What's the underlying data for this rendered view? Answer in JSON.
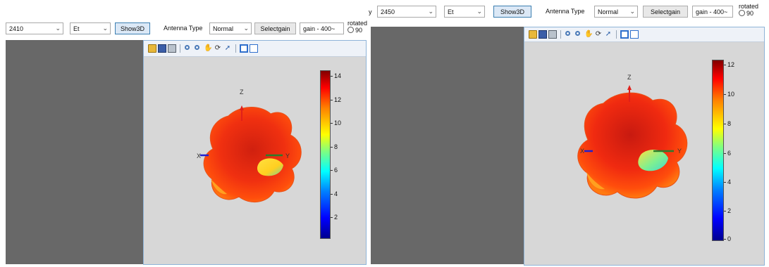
{
  "left": {
    "frequency": "2410",
    "field": "Et",
    "show3d": "Show3D",
    "antenna_type_label": "Antenna Type",
    "antenna_type": "Normal",
    "selectgain": "Selectgain",
    "gain_field": "gain - 400~",
    "rotated_label": "rotated",
    "rotated_option": "90",
    "axis_z": "Z",
    "axis_x": "X",
    "axis_y": "Y",
    "colorbar_ticks": [
      "14",
      "12",
      "10",
      "8",
      "6",
      "4",
      "2"
    ]
  },
  "right": {
    "y_fragment": "y",
    "frequency": "2450",
    "field": "Et",
    "show3d": "Show3D",
    "antenna_type_label": "Antenna Type",
    "antenna_type": "Normal",
    "selectgain": "Selectgain",
    "gain_field": "gain - 400~",
    "rotated_label": "rotated",
    "rotated_option": "90",
    "axis_z": "Z",
    "axis_x": "X",
    "axis_y": "Y",
    "colorbar_ticks": [
      "12",
      "10",
      "8",
      "6",
      "4",
      "2",
      "0"
    ]
  },
  "icons": [
    "folder-open-icon",
    "save-icon",
    "print-icon",
    "zoom-in-icon",
    "zoom-out-icon",
    "pan-hand-icon",
    "rotate-3d-icon",
    "data-cursor-icon",
    "colorbar-toggle-icon",
    "legend-toggle-icon"
  ],
  "colors": {
    "figure_bg": "#d7d7d7",
    "panel_gray": "#686868",
    "axis_z": "#e0201a",
    "axis_x": "#2020d0",
    "axis_y": "#2a7d2a"
  }
}
